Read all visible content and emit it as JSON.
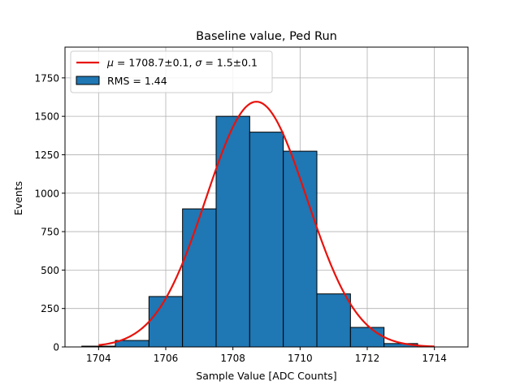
{
  "chart_data": {
    "type": "bar",
    "title": "Baseline value, Ped Run",
    "xlabel": "Sample Value [ADC Counts]",
    "ylabel": "Events",
    "xlim": [
      1703,
      1715
    ],
    "ylim": [
      0,
      1950
    ],
    "xticks": [
      1704,
      1706,
      1708,
      1710,
      1712,
      1714
    ],
    "yticks": [
      0,
      250,
      500,
      750,
      1000,
      1250,
      1500,
      1750
    ],
    "grid": true,
    "legend_position": "top-left",
    "histogram": {
      "name": "RMS = 1.44",
      "color": "#1f77b4",
      "edge_color": "#000000",
      "bin_edges": [
        1703.5,
        1704.5,
        1705.5,
        1706.5,
        1707.5,
        1708.5,
        1709.5,
        1710.5,
        1711.5,
        1712.5,
        1713.5
      ],
      "values": [
        5,
        42,
        328,
        898,
        1500,
        1397,
        1273,
        345,
        127,
        22
      ]
    },
    "fit": {
      "name_mu_symbol": "μ",
      "name_mu_value": " = 1708.7±0.1, ",
      "name_sigma_symbol": "σ",
      "name_sigma_value": " = 1.5±0.1",
      "color": "#e8120c",
      "type": "gaussian",
      "mu": 1708.7,
      "sigma": 1.5,
      "amplitude": 1595,
      "x_range": [
        1704,
        1714
      ]
    }
  }
}
